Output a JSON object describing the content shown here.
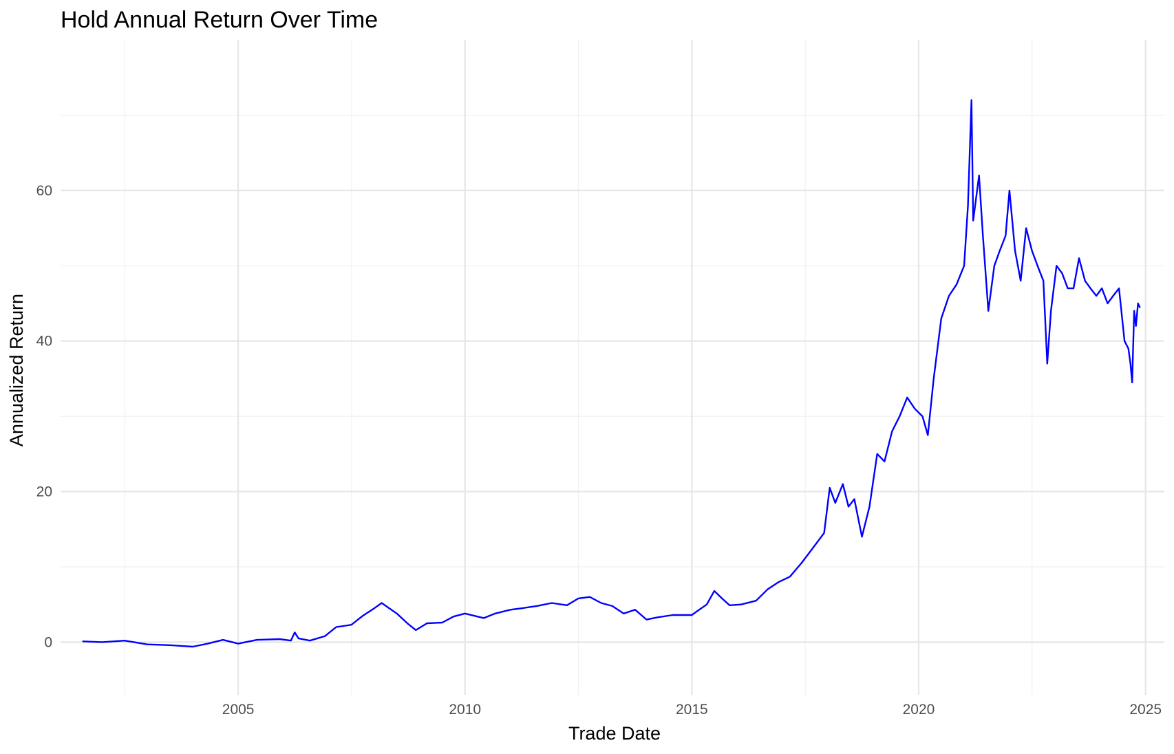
{
  "chart_data": {
    "type": "line",
    "title": "Hold Annual Return Over Time",
    "xlabel": "Trade Date",
    "ylabel": "Annualized Return",
    "xlim": [
      "2001-02-01",
      "2025-06-01"
    ],
    "ylim": [
      -7,
      80
    ],
    "grid": true,
    "legend": "none",
    "x_ticks": [
      {
        "value": "2005-01-01",
        "label": "2005"
      },
      {
        "value": "2010-01-01",
        "label": "2010"
      },
      {
        "value": "2015-01-01",
        "label": "2015"
      },
      {
        "value": "2020-01-01",
        "label": "2020"
      },
      {
        "value": "2025-01-01",
        "label": "2025"
      }
    ],
    "y_ticks": [
      {
        "value": 0,
        "label": "0"
      },
      {
        "value": 20,
        "label": "20"
      },
      {
        "value": 40,
        "label": "40"
      },
      {
        "value": 60,
        "label": "60"
      }
    ],
    "series": [
      {
        "color": "#0000ff",
        "x": [
          "2001-08-01",
          "2002-01-01",
          "2002-07-01",
          "2003-01-01",
          "2003-07-01",
          "2004-01-01",
          "2004-05-01",
          "2004-09-01",
          "2005-01-01",
          "2005-06-01",
          "2005-12-01",
          "2006-03-01",
          "2006-04-01",
          "2006-05-01",
          "2006-08-01",
          "2006-12-01",
          "2007-03-01",
          "2007-07-01",
          "2007-10-01",
          "2008-01-01",
          "2008-03-01",
          "2008-07-01",
          "2008-10-01",
          "2008-12-01",
          "2009-03-01",
          "2009-07-01",
          "2009-10-01",
          "2010-01-01",
          "2010-06-01",
          "2010-09-01",
          "2011-01-01",
          "2011-04-01",
          "2011-08-01",
          "2011-12-01",
          "2012-04-01",
          "2012-07-01",
          "2012-10-01",
          "2013-01-01",
          "2013-04-01",
          "2013-07-01",
          "2013-10-01",
          "2014-01-01",
          "2014-04-01",
          "2014-08-01",
          "2015-01-01",
          "2015-03-01",
          "2015-05-01",
          "2015-07-01",
          "2015-09-01",
          "2015-11-01",
          "2016-02-01",
          "2016-06-01",
          "2016-09-01",
          "2016-12-01",
          "2017-03-01",
          "2017-06-01",
          "2017-09-01",
          "2017-12-01",
          "2018-01-15",
          "2018-03-01",
          "2018-05-01",
          "2018-06-15",
          "2018-08-01",
          "2018-10-01",
          "2018-12-01",
          "2019-02-01",
          "2019-04-01",
          "2019-06-01",
          "2019-08-01",
          "2019-10-01",
          "2019-12-01",
          "2020-02-01",
          "2020-03-15",
          "2020-05-01",
          "2020-07-01",
          "2020-09-01",
          "2020-11-01",
          "2021-01-01",
          "2021-02-01",
          "2021-03-01",
          "2021-03-15",
          "2021-05-01",
          "2021-06-01",
          "2021-07-15",
          "2021-09-01",
          "2021-10-15",
          "2021-12-01",
          "2022-01-01",
          "2022-02-15",
          "2022-04-01",
          "2022-05-15",
          "2022-07-01",
          "2022-08-15",
          "2022-10-01",
          "2022-11-01",
          "2022-12-01",
          "2023-01-15",
          "2023-03-01",
          "2023-04-15",
          "2023-06-01",
          "2023-07-15",
          "2023-09-01",
          "2023-10-15",
          "2023-12-01",
          "2024-01-15",
          "2024-03-01",
          "2024-04-15",
          "2024-06-01",
          "2024-07-15",
          "2024-08-15",
          "2024-09-01",
          "2024-09-15",
          "2024-10-01",
          "2024-10-15",
          "2024-11-01",
          "2024-11-15"
        ],
        "values": [
          0.1,
          0.0,
          0.2,
          -0.3,
          -0.4,
          -0.6,
          -0.2,
          0.3,
          -0.2,
          0.3,
          0.4,
          0.2,
          1.3,
          0.5,
          0.2,
          0.8,
          2.0,
          2.3,
          3.5,
          4.5,
          5.2,
          3.8,
          2.4,
          1.6,
          2.5,
          2.6,
          3.4,
          3.8,
          3.2,
          3.8,
          4.3,
          4.5,
          4.8,
          5.2,
          4.9,
          5.8,
          6.0,
          5.2,
          4.8,
          3.8,
          4.3,
          3.0,
          3.3,
          3.6,
          3.6,
          4.3,
          5.0,
          6.8,
          5.8,
          4.9,
          5.0,
          5.5,
          7.0,
          8.0,
          8.7,
          10.5,
          12.5,
          14.5,
          20.5,
          18.5,
          21.0,
          18.0,
          19.0,
          14.0,
          18.0,
          25.0,
          24.0,
          28.0,
          30.0,
          32.5,
          31.0,
          30.0,
          27.5,
          35.0,
          43.0,
          46.0,
          47.5,
          50.0,
          58.0,
          72.0,
          56.0,
          62.0,
          54.0,
          44.0,
          50.0,
          52.0,
          54.0,
          60.0,
          52.0,
          48.0,
          55.0,
          52.0,
          50.0,
          48.0,
          37.0,
          44.0,
          50.0,
          49.0,
          47.0,
          47.0,
          51.0,
          48.0,
          47.0,
          46.0,
          47.0,
          45.0,
          46.0,
          47.0,
          40.0,
          39.0,
          37.0,
          34.5,
          44.0,
          42.0,
          45.0,
          44.5
        ]
      }
    ]
  }
}
